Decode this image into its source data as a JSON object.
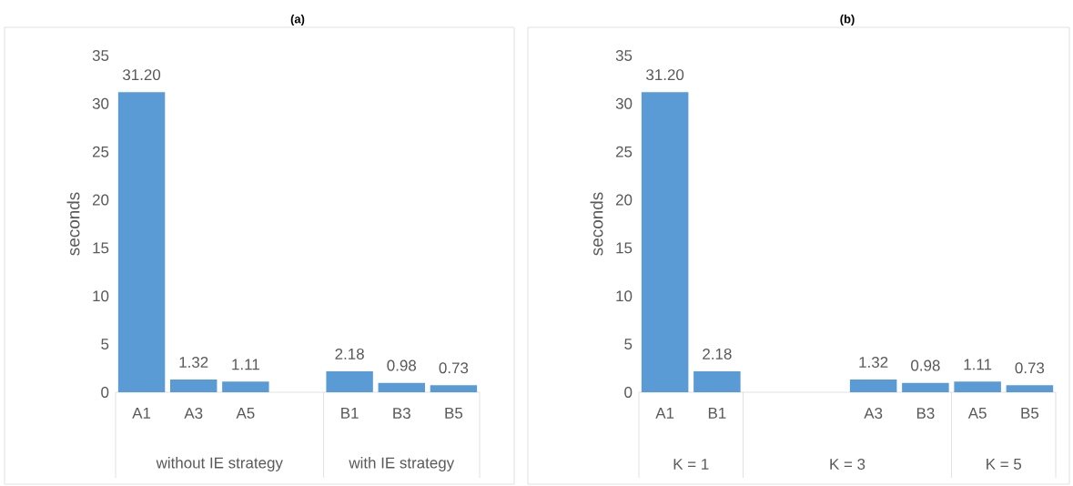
{
  "chart_data": [
    {
      "type": "bar",
      "title": "(a)",
      "ylabel": "seconds",
      "categories": [
        "A1",
        "A3",
        "A5",
        null,
        "B1",
        "B3",
        "B5"
      ],
      "values": [
        31.2,
        1.32,
        1.11,
        null,
        2.18,
        0.98,
        0.73
      ],
      "value_labels": [
        "31.20",
        "1.32",
        "1.11",
        null,
        "2.18",
        "0.98",
        "0.73"
      ],
      "color": "#5b9bd5",
      "ylim": [
        0,
        35
      ],
      "yticks": [
        0,
        5,
        10,
        15,
        20,
        25,
        30,
        35
      ],
      "annotations": [
        "without IE strategy",
        "with IE strategy"
      ]
    },
    {
      "type": "bar",
      "title": "(b)",
      "ylabel": "seconds",
      "categories": [
        "A1",
        "B1",
        null,
        null,
        "A3",
        "B3",
        "A5",
        "B5"
      ],
      "values": [
        31.2,
        2.18,
        null,
        null,
        1.32,
        0.98,
        1.11,
        0.73
      ],
      "value_labels": [
        "31.20",
        "2.18",
        null,
        null,
        "1.32",
        "0.98",
        "1.11",
        "0.73"
      ],
      "color": "#5b9bd5",
      "ylim": [
        0,
        35
      ],
      "yticks": [
        0,
        5,
        10,
        15,
        20,
        25,
        30,
        35
      ],
      "annotations": [
        "K = 1",
        "K = 3",
        "K = 5"
      ]
    }
  ]
}
